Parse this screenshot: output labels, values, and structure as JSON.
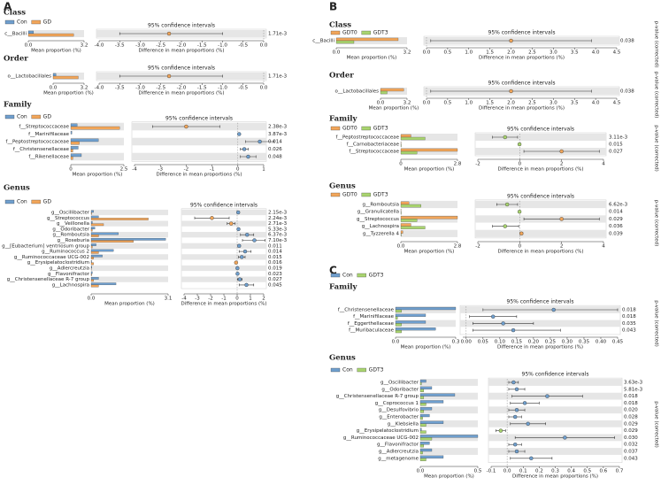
{
  "panels": [
    "A",
    "B",
    "C"
  ],
  "chart_data": [
    {
      "type": "stamp",
      "title": "Class",
      "legend": true,
      "series": [
        {
          "name": "Con",
          "color": "#6f9fce",
          "values": [
            0.3
          ]
        },
        {
          "name": "GD",
          "color": "#f2a65a",
          "values": [
            2.6
          ]
        }
      ],
      "categories": [
        "c__Bacilli"
      ],
      "xlim": [
        0,
        3.2
      ],
      "xticks": [
        {
          "value": 0,
          "label": "0.0"
        },
        3.2
      ],
      "xlabel": "Mean proportion (%)",
      "ci_title": "95% confidence intervals",
      "diff": [
        -2.3
      ],
      "lower": [
        -3.5
      ],
      "upper": [
        -1.0
      ],
      "x2lim": [
        -4,
        0
      ],
      "x2ticks": [
        {
          "value": -4,
          "label": "-4.0"
        },
        -3.5,
        {
          "value": -3,
          "label": "-3.0"
        },
        -2.5,
        {
          "value": -2,
          "label": "-2.0"
        },
        -1.5,
        {
          "value": -1,
          "label": "-1.0"
        },
        -0.5,
        {
          "value": 0,
          "label": "0.0"
        }
      ],
      "x2label": "Difference in mean proportions (%)",
      "p_values": [
        "1.71e-3"
      ]
    },
    {
      "type": "stamp",
      "title": "Order",
      "legend": false,
      "series": [
        {
          "name": "Con",
          "color": "#6f9fce",
          "values": [
            0.3
          ]
        },
        {
          "name": "GD",
          "color": "#f2a65a",
          "values": [
            2.6
          ]
        }
      ],
      "categories": [
        "o__Lactobacillales"
      ],
      "xlim": [
        0,
        3.2
      ],
      "xticks": [
        {
          "value": 0,
          "label": "0.0"
        },
        3.2
      ],
      "xlabel": "Mean proportion (%)",
      "ci_title": "95% confidence intervals",
      "diff": [
        -2.3
      ],
      "lower": [
        -3.5
      ],
      "upper": [
        -1.0
      ],
      "x2lim": [
        -4,
        0
      ],
      "x2ticks": [
        {
          "value": -4,
          "label": "-4.0"
        },
        -3.5,
        {
          "value": -3,
          "label": "-3.0"
        },
        -2.5,
        {
          "value": -2,
          "label": "-2.0"
        },
        -1.5,
        {
          "value": -1,
          "label": "-1.0"
        },
        -0.5,
        {
          "value": 0,
          "label": "0.0"
        }
      ],
      "x2label": "Difference in mean proportions (%)",
      "p_values": [
        "1.71e-3"
      ]
    },
    {
      "type": "stamp",
      "title": "Family",
      "legend": true,
      "series": [
        {
          "name": "Con",
          "color": "#6f9fce",
          "values": [
            0.3,
            0.05,
            1.3,
            0.35,
            0.5
          ]
        },
        {
          "name": "GD",
          "color": "#f2a65a",
          "values": [
            2.3,
            0,
            0.4,
            0.1,
            0.1
          ]
        }
      ],
      "categories": [
        "f__Streptococcaceae",
        "f__Marinifilaceae",
        "f__Peptostreptococcaceae",
        "f__Christensenellaceae",
        "f__Rikenellaceae"
      ],
      "xlim": [
        0,
        2.5
      ],
      "xticks": [
        0,
        2.5
      ],
      "xlabel": "Mean proportion (%)",
      "ci_title": "95% confidence intervals",
      "diff": [
        -2.0,
        0.05,
        0.85,
        0.25,
        0.4
      ],
      "lower": [
        -3.3,
        0.02,
        0.3,
        0.1,
        0.1
      ],
      "upper": [
        -0.7,
        0.08,
        1.4,
        0.4,
        0.7
      ],
      "x2lim": [
        -4,
        1
      ],
      "x2ticks": [
        -4,
        -3,
        -2,
        -1,
        0,
        1
      ],
      "x2label": "Difference in mean proportions (%)",
      "p_values": [
        "2.38e-3",
        "3.87e-3",
        "0.014",
        "0.026",
        "0.048"
      ]
    },
    {
      "type": "stamp",
      "title": "Genus",
      "legend": true,
      "series": [
        {
          "name": "Con",
          "color": "#6f9fce",
          "values": [
            0.1,
            0.3,
            0.05,
            0.15,
            1.1,
            3.0,
            0.2,
            0.9,
            0.45,
            0.02,
            0.03,
            0.05,
            0.3,
            1.0
          ]
        },
        {
          "name": "GD",
          "color": "#f2a65a",
          "values": [
            0.02,
            2.3,
            0.5,
            0.05,
            0.3,
            1.7,
            0.05,
            0.3,
            0.1,
            0.1,
            0.01,
            0.02,
            0.1,
            0.3
          ]
        }
      ],
      "categories": [
        "g__Oscillibacter",
        "g__Streptococcus",
        "g__Veillonella",
        "g__Odoribacter",
        "g__Romboutsia",
        "g__Roseburia",
        "g__[Eubacterium] ventriosum group",
        "g__Ruminococcus 2",
        "g__Ruminococcaceae UCG-002",
        "g__Erysipelatoclostridium",
        "g__Adlercreutzia",
        "g__Flavonifractor",
        "g__Christensenellaceae R-7 group",
        "g__Lachnospira"
      ],
      "xlim": [
        0,
        3.1
      ],
      "xticks": [
        {
          "value": 0,
          "label": "0.0"
        },
        3.1
      ],
      "xlabel": "Mean proportion (%)",
      "ci_title": "95% confidence intervals",
      "diff": [
        0.08,
        -1.9,
        -0.45,
        0.1,
        0.75,
        1.3,
        0.15,
        0.6,
        0.35,
        -0.08,
        0.02,
        0.03,
        0.2,
        0.7
      ],
      "lower": [
        0.03,
        -3.2,
        -0.75,
        0.04,
        0.25,
        0.4,
        0.05,
        0.15,
        0.1,
        -0.14,
        0.005,
        0.01,
        0.03,
        0.15
      ],
      "upper": [
        0.13,
        -0.6,
        -0.15,
        0.16,
        1.25,
        2.1,
        0.25,
        1.05,
        0.6,
        -0.02,
        0.035,
        0.05,
        0.37,
        1.25
      ],
      "x2lim": [
        -4,
        2
      ],
      "x2ticks": [
        -4,
        -3,
        -2,
        -1,
        0,
        1,
        2
      ],
      "x2label": "Difference in mean proportions (%)",
      "p_values": [
        "2.15e-3",
        "2.24e-3",
        "2.71e-3",
        "5.33e-3",
        "6.37e-3",
        "7.10e-3",
        "0.011",
        "0.014",
        "0.015",
        "0.016",
        "0.019",
        "0.023",
        "0.027",
        "0.045"
      ]
    },
    {
      "type": "stamp",
      "title": "Class",
      "legend": true,
      "y2label": "p-value (corrected)",
      "series": [
        {
          "name": "GDT0",
          "color": "#f2a65a",
          "values": [
            2.8
          ]
        },
        {
          "name": "GDT3",
          "color": "#a9d46f",
          "values": [
            0.8
          ]
        }
      ],
      "categories": [
        "c__Bacilli"
      ],
      "xlim": [
        0,
        3.2
      ],
      "xticks": [
        {
          "value": 0,
          "label": "0.0"
        },
        3.2
      ],
      "xlabel": "Mean proportion (%)",
      "ci_title": "95% confidence intervals",
      "diff": [
        2.0
      ],
      "lower": [
        0.1
      ],
      "upper": [
        3.9
      ],
      "x2lim": [
        0,
        4.5
      ],
      "x2ticks": [
        {
          "value": 0,
          "label": "0.0"
        },
        0.5,
        {
          "value": 1,
          "label": "1.0"
        },
        1.5,
        {
          "value": 2,
          "label": "2.0"
        },
        2.5,
        {
          "value": 3,
          "label": "3.0"
        },
        3.5,
        {
          "value": 4,
          "label": "4.0"
        },
        4.5
      ],
      "x2label": "Difference in mean proportions (%)",
      "p_values": [
        "0.038"
      ]
    },
    {
      "type": "stamp",
      "title": "Order",
      "legend": false,
      "y2label": "p-value (corrected)",
      "series": [
        {
          "name": "GDT0",
          "color": "#f2a65a",
          "values": [
            2.8
          ]
        },
        {
          "name": "GDT3",
          "color": "#a9d46f",
          "values": [
            0.8
          ]
        }
      ],
      "categories": [
        "o__Lactobacillales"
      ],
      "xlim": [
        0,
        3.2
      ],
      "xticks": [
        {
          "value": 0,
          "label": "0.0"
        },
        3.2
      ],
      "xlabel": "Mean proportion (%)",
      "ci_title": "95% confidence intervals",
      "diff": [
        2.0
      ],
      "lower": [
        0.1
      ],
      "upper": [
        3.9
      ],
      "x2lim": [
        0,
        4.5
      ],
      "x2ticks": [
        {
          "value": 0,
          "label": "0.0"
        },
        0.5,
        {
          "value": 1,
          "label": "1.0"
        },
        1.5,
        {
          "value": 2,
          "label": "2.0"
        },
        2.5,
        {
          "value": 3,
          "label": "3.0"
        },
        3.5,
        {
          "value": 4,
          "label": "4.0"
        },
        4.5
      ],
      "x2label": "Difference in mean proportions (%)",
      "p_values": [
        "0.038"
      ]
    },
    {
      "type": "stamp",
      "title": "Family",
      "legend": true,
      "y2label": "p-value (corrected)",
      "series": [
        {
          "name": "GDT0",
          "color": "#f2a65a",
          "values": [
            0.5,
            0.01,
            2.8
          ]
        },
        {
          "name": "GDT3",
          "color": "#a9d46f",
          "values": [
            1.2,
            0.02,
            0.8
          ]
        }
      ],
      "categories": [
        "f__Peptostreptococcaceae",
        "f__Carnobacteriaceae",
        "f__Streptococcaceae"
      ],
      "xlim": [
        0,
        2.8
      ],
      "xticks": [
        0,
        2.8
      ],
      "xlabel": "Mean proportion (%)",
      "ci_title": "95% confidence intervals",
      "diff": [
        -0.7,
        -0.01,
        2.0
      ],
      "lower": [
        -1.3,
        -0.02,
        0.2
      ],
      "upper": [
        -0.1,
        0,
        3.8
      ],
      "x2lim": [
        -2,
        4
      ],
      "x2ticks": [
        -2,
        0,
        2,
        4
      ],
      "x2label": "Difference in mean proportions (%)",
      "p_values": [
        "3.11e-3",
        "0.015",
        "0.027"
      ]
    },
    {
      "type": "stamp",
      "title": "Genus",
      "legend": true,
      "y2label": "p-value (corrected)",
      "series": [
        {
          "name": "GDT0",
          "color": "#f2a65a",
          "values": [
            0.4,
            0.01,
            2.8,
            0.5,
            0.1
          ]
        },
        {
          "name": "GDT3",
          "color": "#a9d46f",
          "values": [
            1.0,
            0.02,
            0.8,
            1.2,
            0.02
          ]
        }
      ],
      "categories": [
        "g__Romboutsia",
        "g__Granulicatella",
        "g__Streptococcus",
        "g__Lachnospira",
        "g__Tyzzerella 4"
      ],
      "xlim": [
        0,
        2.8
      ],
      "xticks": [
        {
          "value": 0,
          "label": "0.0"
        },
        2.8
      ],
      "xlabel": "Mean proportion (%)",
      "ci_title": "95% confidence intervals",
      "diff": [
        -0.6,
        -0.01,
        2.0,
        -0.7,
        0.08
      ],
      "lower": [
        -1.1,
        -0.02,
        0.2,
        -1.3,
        0.01
      ],
      "upper": [
        -0.1,
        0,
        3.8,
        -0.05,
        0.15
      ],
      "x2lim": [
        -2,
        4
      ],
      "x2ticks": [
        -2,
        0,
        2,
        4
      ],
      "x2label": "Difference in mean proportions (%)",
      "p_values": [
        "6.62e-3",
        "0.014",
        "0.029",
        "0.036",
        "0.039"
      ]
    },
    {
      "type": "stamp",
      "title": "Family",
      "legend": true,
      "y2label": "p-value (corrected)",
      "series": [
        {
          "name": "Con",
          "color": "#6f9fce",
          "values": [
            0.3,
            0.15,
            0.15,
            0.2
          ]
        },
        {
          "name": "GDT3",
          "color": "#a9d46f",
          "values": [
            0.03,
            0.01,
            0.03,
            0.03
          ]
        }
      ],
      "categories": [
        "f__Christensenellaceae",
        "f__Marinifilaceae",
        "f__Eggerthellaceae",
        "f__Muribaculaceae"
      ],
      "xlim": [
        0,
        0.3
      ],
      "xticks": [
        {
          "value": 0,
          "label": "0.0"
        },
        0.3
      ],
      "xlabel": "Mean proportion (%)",
      "ci_title": "95% confidence intervals",
      "diff": [
        0.26,
        0.08,
        0.11,
        0.14
      ],
      "lower": [
        0.05,
        0.01,
        0.02,
        0.02
      ],
      "upper": [
        0.45,
        0.15,
        0.2,
        0.28
      ],
      "x2lim": [
        -0.01,
        0.45
      ],
      "x2ticks": [
        {
          "value": 0,
          "label": "0.00"
        },
        0.05,
        {
          "value": 0.1,
          "label": "0.10"
        },
        0.15,
        {
          "value": 0.2,
          "label": "0.20"
        },
        0.25,
        {
          "value": 0.3,
          "label": "0.30"
        },
        0.35,
        {
          "value": 0.4,
          "label": "0.40"
        },
        0.45
      ],
      "x2label": "Difference in mean proportions (%)",
      "p_values": [
        "0.018",
        "0.018",
        "0.035",
        "0.043"
      ]
    },
    {
      "type": "stamp",
      "title": "Genus",
      "legend": true,
      "y2label": "p-value (corrected)",
      "series": [
        {
          "name": "Con",
          "color": "#6f9fce",
          "values": [
            0.05,
            0.1,
            0.3,
            0.2,
            0.1,
            0.08,
            0.2,
            0.01,
            0.5,
            0.08,
            0.1,
            0.2
          ]
        },
        {
          "name": "GDT3",
          "color": "#a9d46f",
          "values": [
            0.01,
            0.03,
            0.03,
            0.05,
            0.03,
            0.02,
            0.05,
            0.05,
            0.1,
            0.03,
            0.02,
            0.05
          ]
        }
      ],
      "categories": [
        "g__Oscillibacter",
        "g__Odoribacter",
        "g__Christensenellaceae R-7 group",
        "g__Coprococcus 1",
        "g__Desulfovibrio",
        "g__Enterobacter",
        "g__Klebsiella",
        "g__Erysipelatoclostridium",
        "g__Ruminococcaceae UCG-002",
        "g__Flavonifractor",
        "g__Adlercreutzia",
        "g__metagenome"
      ],
      "xlim": [
        0,
        0.5
      ],
      "xticks": [
        {
          "value": 0,
          "label": "0.0"
        },
        0.5
      ],
      "xlabel": "Mean proportion (%)",
      "ci_title": "95% confidence intervals",
      "diff": [
        0.04,
        0.06,
        0.25,
        0.11,
        0.06,
        0.05,
        0.13,
        -0.04,
        0.36,
        0.05,
        0.06,
        0.15
      ],
      "lower": [
        0.01,
        0.01,
        0.03,
        0.02,
        0.01,
        0.01,
        0.02,
        -0.07,
        0.05,
        0.01,
        0.01,
        0.02
      ],
      "upper": [
        0.07,
        0.11,
        0.47,
        0.2,
        0.11,
        0.09,
        0.24,
        -0.01,
        0.67,
        0.09,
        0.11,
        0.28
      ],
      "x2lim": [
        -0.1,
        0.7
      ],
      "x2ticks": [
        -0.1,
        {
          "value": 0,
          "label": "0.0"
        },
        0.1,
        0.2,
        0.3,
        0.4,
        0.5,
        0.6,
        0.7
      ],
      "x2label": "Difference in mean proportions (%)",
      "p_values": [
        "3.63e-3",
        "5.81e-3",
        "0.018",
        "0.018",
        "0.020",
        "0.028",
        "0.029",
        "0.029",
        "0.030",
        "0.032",
        "0.037",
        "0.043"
      ]
    }
  ]
}
